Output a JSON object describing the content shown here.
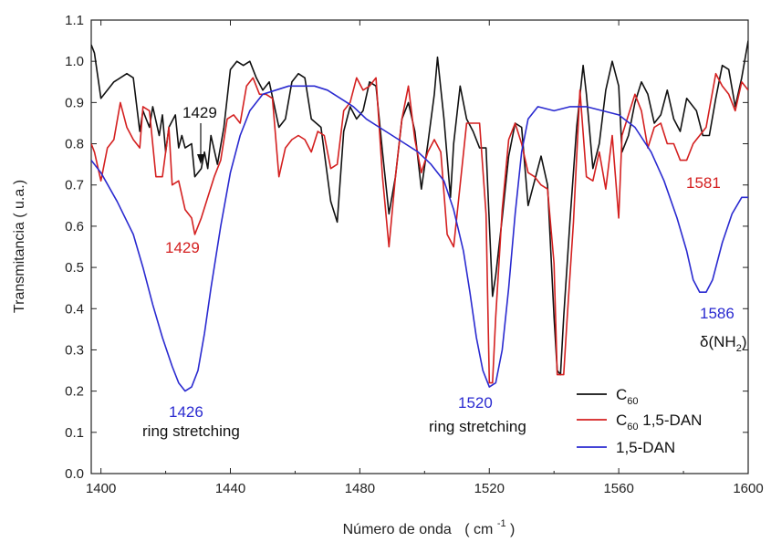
{
  "chart_data": {
    "type": "line",
    "xlabel": "Número de onda",
    "xlabel_unit": "( cm",
    "xlabel_unit_sup": "-1",
    "xlabel_unit_end": ")",
    "ylabel": "Transmitancia  ( u.a.)",
    "xlim": [
      1397,
      1600
    ],
    "ylim": [
      0.0,
      1.1
    ],
    "x_ticks": [
      "1400",
      "1440",
      "1480",
      "1520",
      "1560",
      "1600"
    ],
    "x_tick_values": [
      1400,
      1440,
      1480,
      1520,
      1560,
      1600
    ],
    "y_ticks": [
      "0.0",
      "0.1",
      "0.2",
      "0.3",
      "0.4",
      "0.5",
      "0.6",
      "0.7",
      "0.8",
      "0.9",
      "1.0",
      "1.1"
    ],
    "y_tick_values": [
      0.0,
      0.1,
      0.2,
      0.3,
      0.4,
      0.5,
      0.6,
      0.7,
      0.8,
      0.9,
      1.0,
      1.1
    ],
    "grid": false,
    "legend_position": "bottom-right",
    "series": [
      {
        "name": "C60",
        "legend_main": "C",
        "legend_sub": "60",
        "legend_rest": "",
        "color": "#111111",
        "points": [
          [
            1397,
            1.04
          ],
          [
            1398,
            1.02
          ],
          [
            1400,
            0.91
          ],
          [
            1404,
            0.95
          ],
          [
            1408,
            0.97
          ],
          [
            1410,
            0.96
          ],
          [
            1412,
            0.83
          ],
          [
            1413,
            0.88
          ],
          [
            1415,
            0.84
          ],
          [
            1416,
            0.89
          ],
          [
            1418,
            0.82
          ],
          [
            1419,
            0.87
          ],
          [
            1420,
            0.78
          ],
          [
            1421,
            0.84
          ],
          [
            1423,
            0.87
          ],
          [
            1424,
            0.79
          ],
          [
            1425,
            0.82
          ],
          [
            1426,
            0.79
          ],
          [
            1428,
            0.8
          ],
          [
            1429,
            0.72
          ],
          [
            1431,
            0.74
          ],
          [
            1432,
            0.78
          ],
          [
            1433,
            0.74
          ],
          [
            1434,
            0.82
          ],
          [
            1436,
            0.75
          ],
          [
            1438,
            0.84
          ],
          [
            1440,
            0.98
          ],
          [
            1442,
            1.0
          ],
          [
            1444,
            0.99
          ],
          [
            1446,
            1.0
          ],
          [
            1448,
            0.96
          ],
          [
            1450,
            0.93
          ],
          [
            1452,
            0.95
          ],
          [
            1455,
            0.84
          ],
          [
            1457,
            0.86
          ],
          [
            1459,
            0.95
          ],
          [
            1461,
            0.97
          ],
          [
            1463,
            0.96
          ],
          [
            1465,
            0.86
          ],
          [
            1468,
            0.84
          ],
          [
            1471,
            0.66
          ],
          [
            1473,
            0.61
          ],
          [
            1475,
            0.83
          ],
          [
            1477,
            0.89
          ],
          [
            1479,
            0.86
          ],
          [
            1481,
            0.88
          ],
          [
            1483,
            0.95
          ],
          [
            1485,
            0.94
          ],
          [
            1487,
            0.78
          ],
          [
            1489,
            0.63
          ],
          [
            1491,
            0.72
          ],
          [
            1493,
            0.86
          ],
          [
            1495,
            0.9
          ],
          [
            1497,
            0.83
          ],
          [
            1499,
            0.69
          ],
          [
            1501,
            0.8
          ],
          [
            1503,
            0.92
          ],
          [
            1504,
            1.01
          ],
          [
            1506,
            0.86
          ],
          [
            1508,
            0.67
          ],
          [
            1509,
            0.8
          ],
          [
            1511,
            0.94
          ],
          [
            1513,
            0.86
          ],
          [
            1515,
            0.83
          ],
          [
            1517,
            0.79
          ],
          [
            1519,
            0.79
          ],
          [
            1521,
            0.43
          ],
          [
            1522,
            0.48
          ],
          [
            1524,
            0.62
          ],
          [
            1526,
            0.77
          ],
          [
            1528,
            0.85
          ],
          [
            1530,
            0.84
          ],
          [
            1532,
            0.65
          ],
          [
            1534,
            0.71
          ],
          [
            1536,
            0.77
          ],
          [
            1538,
            0.7
          ],
          [
            1540,
            0.38
          ],
          [
            1541,
            0.25
          ],
          [
            1542,
            0.24
          ],
          [
            1543,
            0.38
          ],
          [
            1545,
            0.62
          ],
          [
            1547,
            0.84
          ],
          [
            1549,
            0.99
          ],
          [
            1550,
            0.92
          ],
          [
            1552,
            0.74
          ],
          [
            1554,
            0.8
          ],
          [
            1556,
            0.93
          ],
          [
            1558,
            1.0
          ],
          [
            1560,
            0.94
          ],
          [
            1561,
            0.78
          ],
          [
            1563,
            0.82
          ],
          [
            1565,
            0.9
          ],
          [
            1567,
            0.95
          ],
          [
            1569,
            0.92
          ],
          [
            1571,
            0.85
          ],
          [
            1573,
            0.87
          ],
          [
            1575,
            0.93
          ],
          [
            1577,
            0.86
          ],
          [
            1579,
            0.83
          ],
          [
            1581,
            0.91
          ],
          [
            1584,
            0.88
          ],
          [
            1586,
            0.82
          ],
          [
            1588,
            0.82
          ],
          [
            1590,
            0.91
          ],
          [
            1592,
            0.99
          ],
          [
            1594,
            0.98
          ],
          [
            1596,
            0.89
          ],
          [
            1598,
            0.96
          ],
          [
            1600,
            1.05
          ]
        ]
      },
      {
        "name": "C60 1,5-DAN",
        "legend_main": "C",
        "legend_sub": "60",
        "legend_rest": " 1,5-DAN",
        "color": "#d42020",
        "points": [
          [
            1397,
            0.8
          ],
          [
            1398,
            0.78
          ],
          [
            1400,
            0.71
          ],
          [
            1402,
            0.79
          ],
          [
            1404,
            0.81
          ],
          [
            1406,
            0.9
          ],
          [
            1408,
            0.84
          ],
          [
            1410,
            0.81
          ],
          [
            1412,
            0.79
          ],
          [
            1413,
            0.89
          ],
          [
            1415,
            0.88
          ],
          [
            1417,
            0.72
          ],
          [
            1419,
            0.72
          ],
          [
            1421,
            0.84
          ],
          [
            1422,
            0.7
          ],
          [
            1424,
            0.71
          ],
          [
            1426,
            0.64
          ],
          [
            1428,
            0.62
          ],
          [
            1429,
            0.58
          ],
          [
            1431,
            0.62
          ],
          [
            1433,
            0.67
          ],
          [
            1435,
            0.72
          ],
          [
            1437,
            0.76
          ],
          [
            1439,
            0.86
          ],
          [
            1441,
            0.87
          ],
          [
            1443,
            0.85
          ],
          [
            1445,
            0.94
          ],
          [
            1447,
            0.96
          ],
          [
            1449,
            0.92
          ],
          [
            1451,
            0.92
          ],
          [
            1453,
            0.91
          ],
          [
            1455,
            0.72
          ],
          [
            1457,
            0.79
          ],
          [
            1459,
            0.81
          ],
          [
            1461,
            0.82
          ],
          [
            1463,
            0.81
          ],
          [
            1465,
            0.78
          ],
          [
            1467,
            0.83
          ],
          [
            1469,
            0.82
          ],
          [
            1471,
            0.74
          ],
          [
            1473,
            0.75
          ],
          [
            1475,
            0.88
          ],
          [
            1477,
            0.9
          ],
          [
            1479,
            0.96
          ],
          [
            1481,
            0.93
          ],
          [
            1483,
            0.94
          ],
          [
            1485,
            0.96
          ],
          [
            1487,
            0.72
          ],
          [
            1489,
            0.55
          ],
          [
            1491,
            0.72
          ],
          [
            1493,
            0.86
          ],
          [
            1495,
            0.94
          ],
          [
            1497,
            0.81
          ],
          [
            1499,
            0.73
          ],
          [
            1501,
            0.78
          ],
          [
            1503,
            0.81
          ],
          [
            1505,
            0.78
          ],
          [
            1507,
            0.58
          ],
          [
            1509,
            0.55
          ],
          [
            1511,
            0.7
          ],
          [
            1513,
            0.85
          ],
          [
            1515,
            0.85
          ],
          [
            1517,
            0.85
          ],
          [
            1519,
            0.63
          ],
          [
            1520,
            0.22
          ],
          [
            1521,
            0.22
          ],
          [
            1522,
            0.38
          ],
          [
            1524,
            0.64
          ],
          [
            1526,
            0.81
          ],
          [
            1528,
            0.85
          ],
          [
            1530,
            0.8
          ],
          [
            1532,
            0.73
          ],
          [
            1534,
            0.72
          ],
          [
            1536,
            0.7
          ],
          [
            1538,
            0.69
          ],
          [
            1540,
            0.51
          ],
          [
            1541,
            0.24
          ],
          [
            1543,
            0.24
          ],
          [
            1544,
            0.37
          ],
          [
            1546,
            0.61
          ],
          [
            1548,
            0.93
          ],
          [
            1550,
            0.72
          ],
          [
            1552,
            0.71
          ],
          [
            1554,
            0.78
          ],
          [
            1556,
            0.69
          ],
          [
            1558,
            0.82
          ],
          [
            1560,
            0.62
          ],
          [
            1561,
            0.82
          ],
          [
            1563,
            0.87
          ],
          [
            1565,
            0.92
          ],
          [
            1567,
            0.88
          ],
          [
            1569,
            0.79
          ],
          [
            1571,
            0.84
          ],
          [
            1573,
            0.85
          ],
          [
            1575,
            0.8
          ],
          [
            1577,
            0.8
          ],
          [
            1579,
            0.76
          ],
          [
            1581,
            0.76
          ],
          [
            1583,
            0.8
          ],
          [
            1585,
            0.82
          ],
          [
            1587,
            0.84
          ],
          [
            1590,
            0.97
          ],
          [
            1592,
            0.94
          ],
          [
            1594,
            0.92
          ],
          [
            1596,
            0.88
          ],
          [
            1598,
            0.95
          ],
          [
            1600,
            0.93
          ]
        ]
      },
      {
        "name": "1,5-DAN",
        "legend_main": "1,5-DAN",
        "legend_sub": "",
        "legend_rest": "",
        "color": "#2a2ad0",
        "points": [
          [
            1397,
            0.76
          ],
          [
            1400,
            0.73
          ],
          [
            1405,
            0.66
          ],
          [
            1410,
            0.58
          ],
          [
            1413,
            0.5
          ],
          [
            1416,
            0.41
          ],
          [
            1419,
            0.33
          ],
          [
            1422,
            0.26
          ],
          [
            1424,
            0.22
          ],
          [
            1426,
            0.2
          ],
          [
            1428,
            0.21
          ],
          [
            1430,
            0.25
          ],
          [
            1432,
            0.34
          ],
          [
            1434,
            0.45
          ],
          [
            1437,
            0.6
          ],
          [
            1440,
            0.73
          ],
          [
            1443,
            0.82
          ],
          [
            1446,
            0.88
          ],
          [
            1450,
            0.92
          ],
          [
            1454,
            0.93
          ],
          [
            1458,
            0.94
          ],
          [
            1462,
            0.94
          ],
          [
            1466,
            0.94
          ],
          [
            1470,
            0.93
          ],
          [
            1474,
            0.91
          ],
          [
            1478,
            0.89
          ],
          [
            1482,
            0.86
          ],
          [
            1486,
            0.84
          ],
          [
            1490,
            0.82
          ],
          [
            1494,
            0.8
          ],
          [
            1498,
            0.78
          ],
          [
            1502,
            0.75
          ],
          [
            1506,
            0.71
          ],
          [
            1509,
            0.64
          ],
          [
            1512,
            0.54
          ],
          [
            1514,
            0.44
          ],
          [
            1516,
            0.33
          ],
          [
            1518,
            0.25
          ],
          [
            1520,
            0.21
          ],
          [
            1522,
            0.22
          ],
          [
            1524,
            0.3
          ],
          [
            1526,
            0.45
          ],
          [
            1528,
            0.63
          ],
          [
            1530,
            0.78
          ],
          [
            1532,
            0.86
          ],
          [
            1535,
            0.89
          ],
          [
            1540,
            0.88
          ],
          [
            1545,
            0.89
          ],
          [
            1550,
            0.89
          ],
          [
            1555,
            0.88
          ],
          [
            1560,
            0.87
          ],
          [
            1565,
            0.84
          ],
          [
            1570,
            0.78
          ],
          [
            1574,
            0.71
          ],
          [
            1578,
            0.62
          ],
          [
            1581,
            0.54
          ],
          [
            1583,
            0.47
          ],
          [
            1585,
            0.44
          ],
          [
            1587,
            0.44
          ],
          [
            1589,
            0.47
          ],
          [
            1592,
            0.56
          ],
          [
            1595,
            0.63
          ],
          [
            1598,
            0.67
          ],
          [
            1600,
            0.67
          ]
        ]
      }
    ],
    "annotations": {
      "a1429_black": "1429",
      "a1429_red": "1429",
      "a1426": "1426",
      "a1426_sub": "ring stretching",
      "a1520": "1520",
      "a1520_sub": "ring stretching",
      "a1581": "1581",
      "a1586": "1586",
      "a1586_sub_main": "δ(NH",
      "a1586_sub_sub": "2",
      "a1586_sub_end": ")"
    }
  }
}
